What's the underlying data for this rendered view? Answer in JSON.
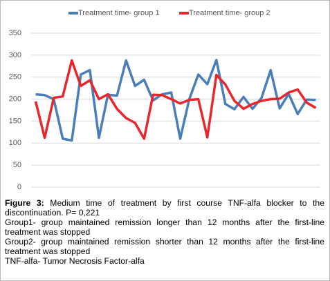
{
  "chart_data": {
    "type": "line",
    "categories": [
      null,
      null,
      null,
      null,
      null,
      null,
      null,
      null,
      null,
      null,
      null,
      null,
      null,
      null,
      null,
      null,
      null,
      null,
      null,
      null,
      null,
      null,
      null,
      null,
      null,
      null,
      null,
      null,
      null,
      null,
      null,
      null
    ],
    "series": [
      {
        "name": "Treatment time-  group 1",
        "color": "#4a7ebb",
        "values": [
          211,
          209,
          200,
          110,
          106,
          256,
          266,
          112,
          210,
          208,
          288,
          230,
          244,
          197,
          211,
          215,
          110,
          200,
          256,
          234,
          289,
          189,
          177,
          205,
          178,
          203,
          266,
          179,
          212,
          166,
          199,
          198
        ]
      },
      {
        "name": "Treatment time- group 2",
        "color": "#e8262b",
        "values": [
          195,
          112,
          203,
          206,
          288,
          230,
          243,
          200,
          211,
          178,
          157,
          146,
          110,
          210,
          209,
          200,
          190,
          198,
          200,
          113,
          255,
          233,
          196,
          178,
          189,
          196,
          200,
          201,
          215,
          222,
          192,
          180
        ]
      }
    ],
    "ylim": [
      0,
      350
    ],
    "yticks": [
      0,
      50,
      100,
      150,
      200,
      250,
      300,
      350
    ],
    "grid": true,
    "legend": "top"
  },
  "caption": {
    "label": "Figure 3:",
    "text": "Medium time of treatment by first course TNF-alfa blocker to the discontinuation. P= 0,221",
    "lines": [
      "Group1- group maintained remission longer than 12 months after the first-line treatment was stopped",
      "Group2- group maintained remission shorter than 12 months after the first-line treatment was stopped",
      "TNF-alfa- Tumor Necrosis Factor-alfa"
    ]
  }
}
